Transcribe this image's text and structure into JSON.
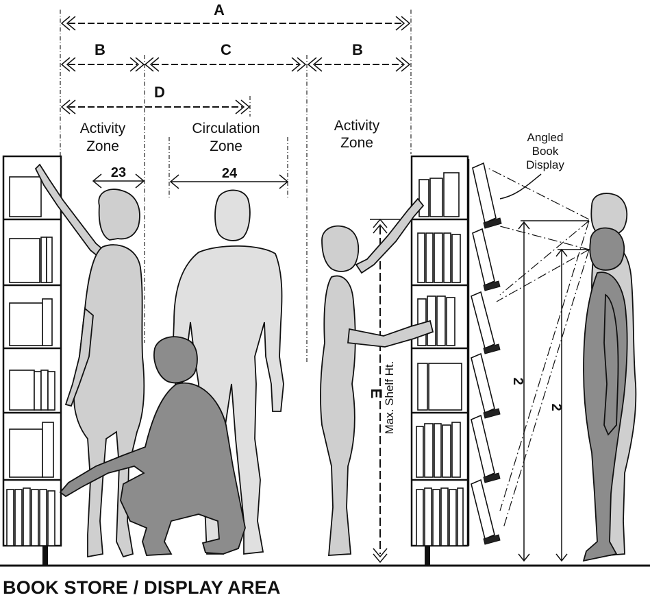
{
  "title": "BOOK STORE / DISPLAY AREA",
  "dimensions": {
    "a": "A",
    "b_left": "B",
    "c": "C",
    "b_right": "B",
    "d": "D",
    "e": "E",
    "e_caption": "Max. Shelf Ht.",
    "activity_zone_width": "23",
    "circulation_zone_width": "24",
    "sight_height_1": "2",
    "sight_height_2": "2"
  },
  "zones": {
    "left_line1": "Activity",
    "left_line2": "Zone",
    "center_line1": "Circulation",
    "center_line2": "Zone",
    "right_line1": "Activity",
    "right_line2": "Zone"
  },
  "display_label": {
    "line1": "Angled",
    "line2": "Book",
    "line3": "Display"
  }
}
